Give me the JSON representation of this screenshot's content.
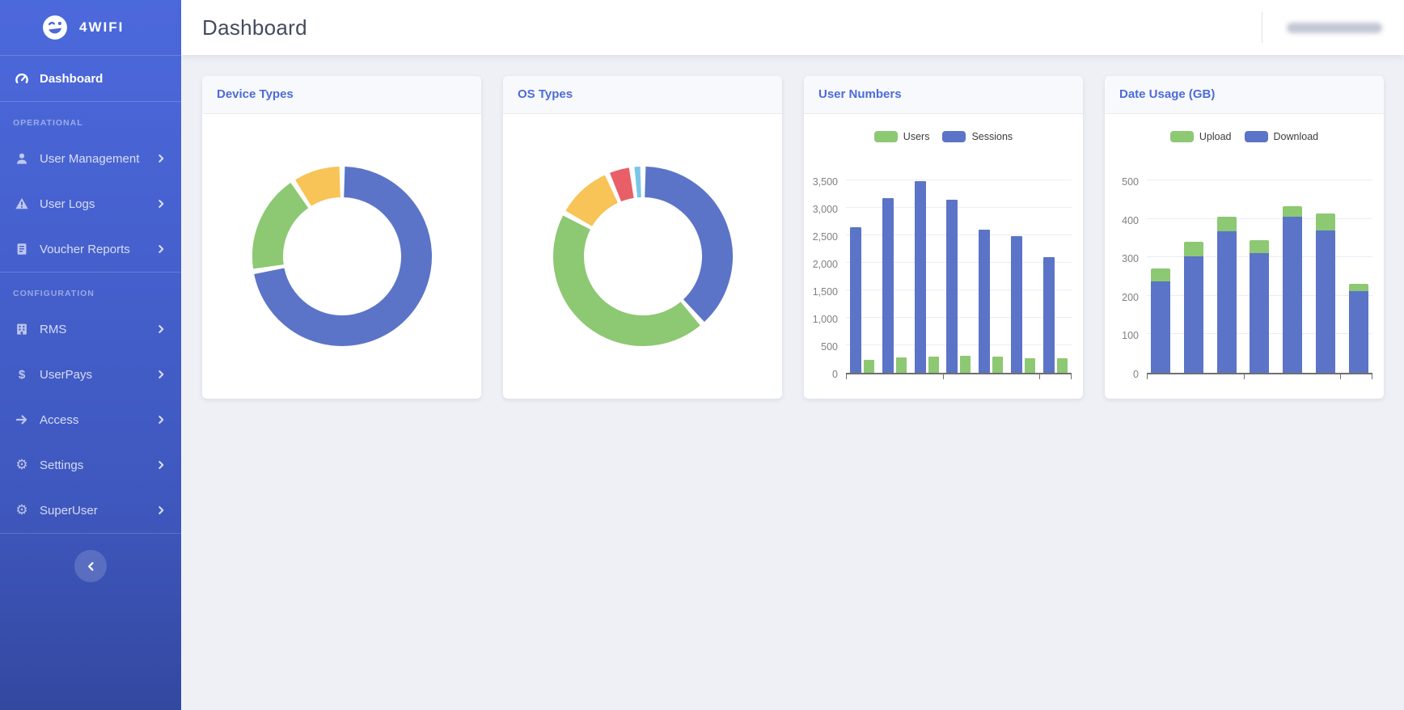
{
  "colors": {
    "sidebar_top": "#4c69dc",
    "sidebar_bottom": "#33489f",
    "accent_blue": "#4d6bd8",
    "chart_blue": "#5b74c7",
    "chart_green": "#8dc873",
    "chart_yellow": "#f8c357",
    "chart_red": "#e85f68",
    "chart_lightblue": "#7cc5e8",
    "page_bg": "#eef0f6"
  },
  "sidebar": {
    "logo_text": "4WIFI",
    "logo_icon": "winking-face-logo",
    "dashboard": {
      "label": "Dashboard",
      "icon": "gauge-icon",
      "active": true
    },
    "sections": [
      {
        "label": "OPERATIONAL",
        "items": [
          {
            "label": "User Management",
            "icon": "user-icon"
          },
          {
            "label": "User Logs",
            "icon": "warning-icon"
          },
          {
            "label": "Voucher Reports",
            "icon": "report-icon"
          }
        ]
      },
      {
        "label": "CONFIGURATION",
        "items": [
          {
            "label": "RMS",
            "icon": "building-icon"
          },
          {
            "label": "UserPays",
            "icon": "dollar-icon"
          },
          {
            "label": "Access",
            "icon": "arrow-right-icon"
          },
          {
            "label": "Settings",
            "icon": "gear-icon"
          },
          {
            "label": "SuperUser",
            "icon": "gear-icon"
          }
        ]
      }
    ],
    "collapse_icon": "chevron-left-icon"
  },
  "header": {
    "title": "Dashboard",
    "username_redacted": true
  },
  "chart_data": [
    {
      "type": "pie",
      "donut": true,
      "title": "Device Types",
      "legend": "none",
      "labels_visible": false,
      "segments": [
        {
          "name": "blue",
          "color": "#5b74c7",
          "value": 70.5
        },
        {
          "name": "green",
          "color": "#8dc873",
          "value": 18
        },
        {
          "name": "yellow",
          "color": "#f8c357",
          "value": 9
        }
      ]
    },
    {
      "type": "pie",
      "donut": true,
      "title": "OS Types",
      "legend": "none",
      "labels_visible": false,
      "segments": [
        {
          "name": "blue",
          "color": "#5b74c7",
          "value": 38.5
        },
        {
          "name": "green",
          "color": "#8dc873",
          "value": 44.5
        },
        {
          "name": "yellow",
          "color": "#f8c357",
          "value": 10.5
        },
        {
          "name": "red",
          "color": "#e85f68",
          "value": 4.5
        },
        {
          "name": "lightblue",
          "color": "#7cc5e8",
          "value": 2
        }
      ]
    },
    {
      "type": "bar",
      "title": "User Numbers",
      "legend_position": "top",
      "num_groups": 7,
      "x_axis_labels": "none",
      "x_ticks_every": 3,
      "ylim": [
        0,
        3500
      ],
      "ytick": 500,
      "ytick_format": "thousands-comma",
      "series": [
        {
          "name": "Users",
          "color": "#8dc873",
          "values": [
            240,
            280,
            300,
            310,
            300,
            265,
            260
          ]
        },
        {
          "name": "Sessions",
          "color": "#5b74c7",
          "values": [
            2650,
            3180,
            3480,
            3150,
            2600,
            2480,
            2100
          ]
        }
      ],
      "bar_order_in_group": [
        "Sessions",
        "Users"
      ]
    },
    {
      "type": "stacked-bar",
      "title": "Date Usage (GB)",
      "legend_position": "top",
      "num_groups": 7,
      "x_axis_labels": "none",
      "x_ticks_every": 3,
      "ylim": [
        0,
        500
      ],
      "ytick": 100,
      "ytick_format": "plain",
      "series": [
        {
          "name": "Upload",
          "color": "#8dc873",
          "values": [
            33,
            38,
            37,
            32,
            27,
            43,
            20
          ]
        },
        {
          "name": "Download",
          "color": "#5b74c7",
          "values": [
            238,
            303,
            368,
            312,
            406,
            370,
            212
          ]
        }
      ],
      "stack_order_bottom_to_top": [
        "Download",
        "Upload"
      ]
    }
  ]
}
